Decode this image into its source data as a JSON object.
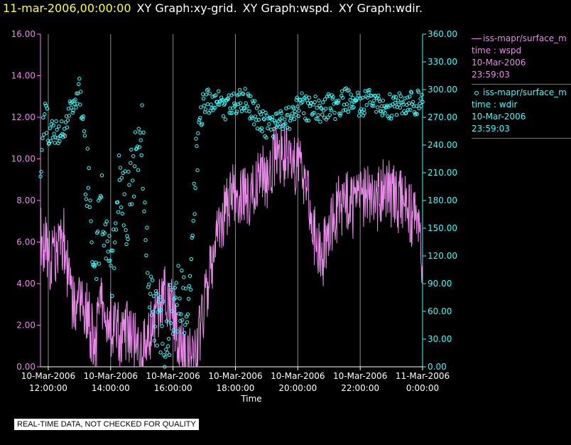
{
  "header": {
    "date_label": "11-mar-2006,00:00:00",
    "graph_titles": [
      "XY Graph:xy-grid.",
      "XY Graph:wspd.",
      "XY Graph:wdir."
    ]
  },
  "notice": "REAL-TIME DATA, NOT CHECKED FOR QUALITY",
  "legend": [
    {
      "name": "iss-mapr/surface_m",
      "var": "time : wspd",
      "date": "10-Mar-2006",
      "time": "23:59:03",
      "color": "#e888e8"
    },
    {
      "name": "iss-mapr/surface_m",
      "var": "time : wdir",
      "date": "10-Mar-2006",
      "time": "23:59:03",
      "color": "#33ffff"
    }
  ],
  "chart_data": {
    "type": "line",
    "xlabel": "Time",
    "x_tick_labels": [
      [
        "10-Mar-2006",
        "12:00:00"
      ],
      [
        "10-Mar-2006",
        "14:00:00"
      ],
      [
        "10-Mar-2006",
        "16:00:00"
      ],
      [
        "10-Mar-2006",
        "18:00:00"
      ],
      [
        "10-Mar-2006",
        "20:00:00"
      ],
      [
        "10-Mar-2006",
        "22:00:00"
      ],
      [
        "11-Mar-2006",
        "0:00:00"
      ]
    ],
    "xlim_hours": [
      11.75,
      24.0
    ],
    "y_left": {
      "range": [
        0,
        16
      ],
      "ticks": [
        "0.00",
        "2.00",
        "4.00",
        "6.00",
        "8.00",
        "10.00",
        "12.00",
        "14.00",
        "16.00"
      ],
      "color": "#e888e8"
    },
    "y_right": {
      "range": [
        0,
        360
      ],
      "ticks": [
        "0.00",
        "30.00",
        "60.00",
        "90.00",
        "120.00",
        "150.00",
        "180.00",
        "210.00",
        "240.00",
        "270.00",
        "300.00",
        "330.00",
        "360.00"
      ],
      "color": "#33ffff"
    },
    "grid": "vertical",
    "series": [
      {
        "key": "wspd",
        "style": "line",
        "axis": "left",
        "color": "#e888e8",
        "hours": [
          11.75,
          12.0,
          12.25,
          12.5,
          12.75,
          13.0,
          13.25,
          13.5,
          13.75,
          14.0,
          14.25,
          14.5,
          14.75,
          15.0,
          15.25,
          15.5,
          15.75,
          16.0,
          16.25,
          16.5,
          16.75,
          17.0,
          17.25,
          17.5,
          17.75,
          18.0,
          18.25,
          18.5,
          18.75,
          19.0,
          19.25,
          19.5,
          19.75,
          20.0,
          20.25,
          20.5,
          20.75,
          21.0,
          21.25,
          21.5,
          21.75,
          22.0,
          22.25,
          22.5,
          22.75,
          23.0,
          23.25,
          23.5,
          23.75,
          24.0
        ],
        "values": [
          6.5,
          5.2,
          5.6,
          6.2,
          3.0,
          2.8,
          2.5,
          1.0,
          3.5,
          2.0,
          1.5,
          1.8,
          1.2,
          0.5,
          1.5,
          2.5,
          3.6,
          2.8,
          0.8,
          0.3,
          0.5,
          3.2,
          5.2,
          6.5,
          8.0,
          8.5,
          8.2,
          8.0,
          9.5,
          9.0,
          10.0,
          10.5,
          9.5,
          10.0,
          9.0,
          6.5,
          5.0,
          6.5,
          7.5,
          8.0,
          7.5,
          8.0,
          8.5,
          7.5,
          9.0,
          8.2,
          8.0,
          7.5,
          7.0,
          5.0
        ],
        "noise": 1.6
      },
      {
        "key": "wdir",
        "style": "markers",
        "axis": "right",
        "color": "#33ffff",
        "hours": [
          11.75,
          12.0,
          12.25,
          12.5,
          12.75,
          13.0,
          13.25,
          13.5,
          13.75,
          14.0,
          14.25,
          14.5,
          14.75,
          15.0,
          15.25,
          15.5,
          15.75,
          16.0,
          16.25,
          16.5,
          16.75,
          17.0,
          17.25,
          17.5,
          17.75,
          18.0,
          18.25,
          18.5,
          18.75,
          19.0,
          19.25,
          19.5,
          19.75,
          20.0,
          20.25,
          20.5,
          20.75,
          21.0,
          21.25,
          21.5,
          21.75,
          22.0,
          22.25,
          22.5,
          22.75,
          23.0,
          23.25,
          23.5,
          23.75,
          24.0
        ],
        "values": [
          245,
          250,
          255,
          258,
          280,
          300,
          200,
          120,
          180,
          90,
          195,
          170,
          210,
          250,
          90,
          40,
          30,
          70,
          80,
          65,
          240,
          290,
          285,
          285,
          280,
          285,
          290,
          280,
          270,
          260,
          262,
          265,
          270,
          285,
          280,
          280,
          275,
          285,
          280,
          290,
          285,
          285,
          285,
          290,
          285,
          280,
          285,
          285,
          285,
          285
        ],
        "noise": 40
      }
    ]
  }
}
